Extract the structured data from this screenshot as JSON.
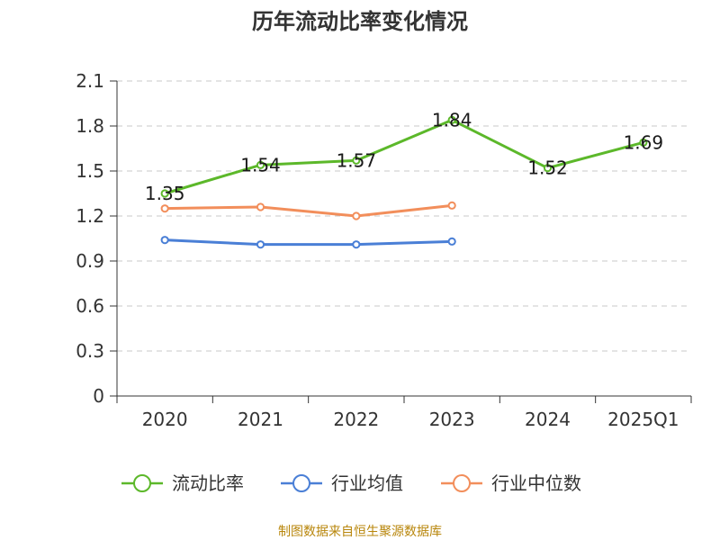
{
  "chart_data": {
    "type": "line",
    "title": "历年流动比率变化情况",
    "categories": [
      "2020",
      "2021",
      "2022",
      "2023",
      "2024",
      "2025Q1"
    ],
    "ylim": [
      0,
      2.1
    ],
    "yticks": [
      "0",
      "0.3",
      "0.6",
      "0.9",
      "1.2",
      "1.5",
      "1.8",
      "2.1"
    ],
    "grid": true,
    "legend_position": "bottom",
    "series": [
      {
        "name": "流动比率",
        "color": "#5cb82a",
        "values": [
          1.35,
          1.54,
          1.57,
          1.84,
          1.52,
          1.69
        ],
        "labels": [
          "1.35",
          "1.54",
          "1.57",
          "1.84",
          "1.52",
          "1.69"
        ]
      },
      {
        "name": "行业均值",
        "color": "#4a7fd6",
        "values": [
          1.04,
          1.01,
          1.01,
          1.03,
          null,
          null
        ]
      },
      {
        "name": "行业中位数",
        "color": "#f28e5b",
        "values": [
          1.25,
          1.26,
          1.2,
          1.27,
          null,
          null
        ]
      }
    ]
  },
  "source_text": "制图数据来自恒生聚源数据库"
}
